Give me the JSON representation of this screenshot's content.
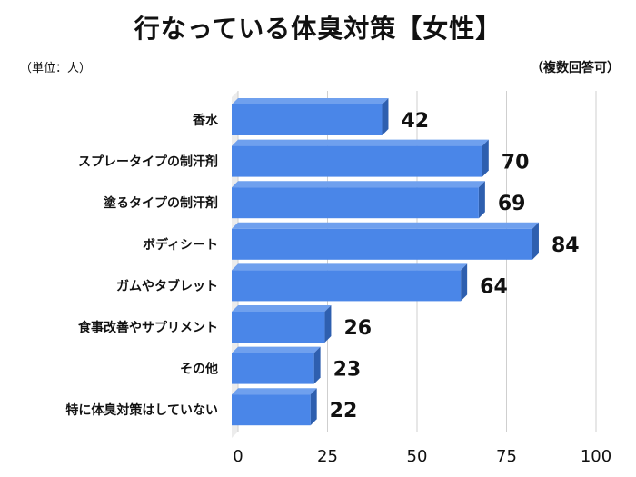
{
  "title": "行なっている体臭対策【女性】",
  "unit_label": "（単位：人）",
  "note": "（複数回答可）",
  "chart_data": {
    "type": "bar",
    "orientation": "horizontal",
    "categories": [
      "香水",
      "スプレータイプの制汗剤",
      "塗るタイプの制汗剤",
      "ボディシート",
      "ガムやタブレット",
      "食事改善やサプリメント",
      "その他",
      "特に体臭対策はしていない"
    ],
    "values": [
      42,
      70,
      69,
      84,
      64,
      26,
      23,
      22
    ],
    "xlim": [
      0,
      100
    ],
    "xticks": [
      0,
      25,
      50,
      75,
      100
    ],
    "grid": true,
    "colors": {
      "bar_front": "#4A86E8",
      "bar_top": "#6FA0EE",
      "bar_side": "#2E5FAF",
      "grid": "#cfcfcf"
    }
  }
}
